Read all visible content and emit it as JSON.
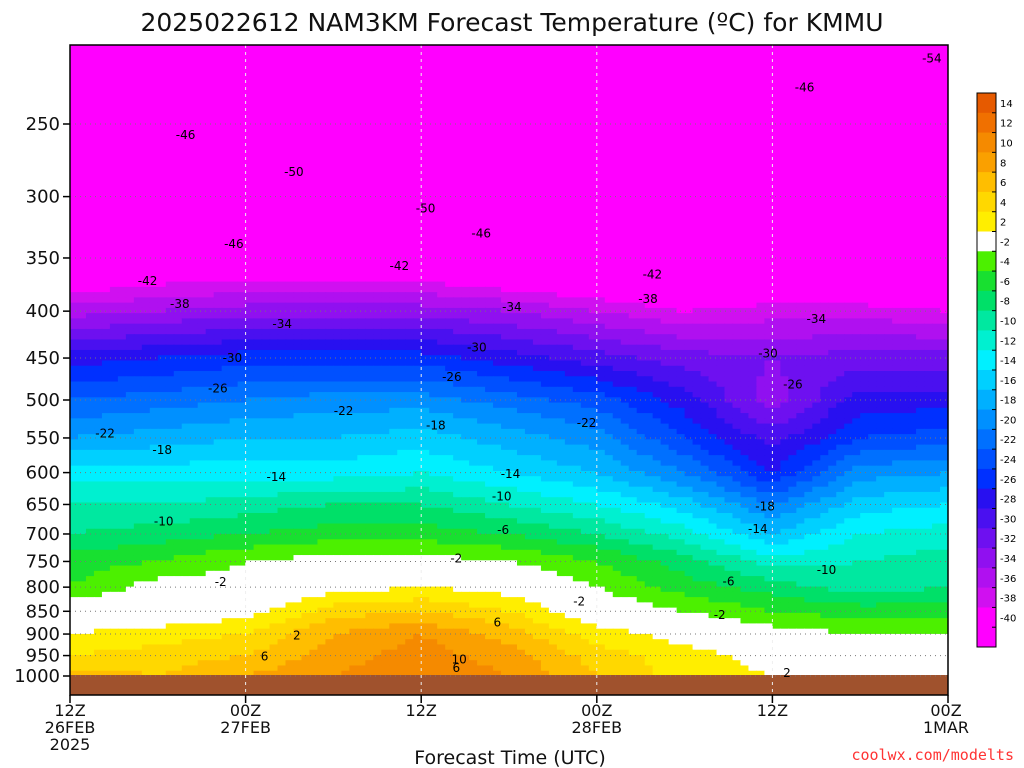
{
  "chart_data": {
    "type": "heatmap",
    "title": "2025022612 NAM3KM Forecast Temperature (ºC) for KMMU",
    "xlabel": "Forecast Time (UTC)",
    "ylabel": "",
    "credit": "coolwx.com/modelts",
    "y_scale": "log-pressure",
    "y_axis_inverted": true,
    "ylim": [
      1050,
      200
    ],
    "yticks": [
      250,
      300,
      350,
      400,
      450,
      500,
      550,
      600,
      650,
      700,
      750,
      800,
      850,
      900,
      950,
      1000
    ],
    "xticks": [
      {
        "hour": 0,
        "l1": "12Z",
        "l2": "26FEB",
        "l3": "2025"
      },
      {
        "hour": 12,
        "l1": "00Z",
        "l2": "27FEB",
        "l3": ""
      },
      {
        "hour": 24,
        "l1": "12Z",
        "l2": "",
        "l3": ""
      },
      {
        "hour": 36,
        "l1": "00Z",
        "l2": "28FEB",
        "l3": ""
      },
      {
        "hour": 48,
        "l1": "12Z",
        "l2": "",
        "l3": ""
      },
      {
        "hour": 60,
        "l1": "00Z",
        "l2": "1MAR",
        "l3": ""
      }
    ],
    "xlim": [
      0,
      60
    ],
    "grid": true,
    "legend": "right colorbar",
    "colorbar": {
      "labels": [
        "14",
        "12",
        "10",
        "8",
        "6",
        "4",
        "2",
        "-2",
        "-4",
        "-6",
        "-8",
        "-10",
        "-12",
        "-14",
        "-16",
        "-18",
        "-20",
        "-22",
        "-24",
        "-26",
        "-28",
        "-30",
        "-32",
        "-34",
        "-36",
        "-38",
        "-40"
      ],
      "colors": [
        "#e65a00",
        "#f07000",
        "#f58a00",
        "#faa000",
        "#ffbe00",
        "#ffd800",
        "#ffee00",
        "#ffffff",
        "#4cf000",
        "#18e030",
        "#00e068",
        "#00e8a0",
        "#00f0d0",
        "#00f0ff",
        "#00d0ff",
        "#00b0ff",
        "#0090ff",
        "#0070ff",
        "#0050ff",
        "#0030ff",
        "#2810f0",
        "#4a10f0",
        "#6e10f0",
        "#9010f0",
        "#b010f0",
        "#d010f0",
        "#ff00ff",
        "#ff00ff"
      ]
    },
    "ground_color": "#a0522d",
    "profile_hours": [
      0,
      6,
      12,
      18,
      24,
      30,
      36,
      42,
      48,
      54,
      60
    ],
    "profile_levels_hPa": [
      1000,
      950,
      900,
      850,
      800,
      750,
      700,
      650,
      600,
      550,
      500,
      450,
      400,
      350,
      300,
      250,
      200
    ],
    "temperature_C": [
      [
        7,
        6,
        8,
        10,
        12,
        10,
        6,
        3,
        2,
        1,
        2
      ],
      [
        4,
        5,
        6,
        9,
        11,
        9,
        5,
        3,
        1,
        0,
        0
      ],
      [
        2,
        3,
        4,
        8,
        10,
        7,
        3,
        1,
        -1,
        -2,
        -2
      ],
      [
        0,
        0,
        1,
        5,
        6,
        4,
        0,
        -2,
        -4,
        -5,
        -5
      ],
      [
        -4,
        -1,
        -1,
        1,
        2,
        1,
        -2,
        -5,
        -7,
        -9,
        -8
      ],
      [
        -5,
        -4,
        -2,
        -1,
        -1,
        -2,
        -4,
        -7,
        -11,
        -10,
        -9
      ],
      [
        -8,
        -7,
        -6,
        -5,
        -5,
        -6,
        -8,
        -11,
        -16,
        -12,
        -11
      ],
      [
        -10,
        -10,
        -9,
        -8,
        -8,
        -10,
        -12,
        -15,
        -20,
        -15,
        -14
      ],
      [
        -13,
        -13,
        -13,
        -13,
        -12,
        -14,
        -16,
        -20,
        -26,
        -19,
        -18
      ],
      [
        -18,
        -17,
        -16,
        -16,
        -15,
        -17,
        -19,
        -24,
        -29,
        -24,
        -23
      ],
      [
        -22,
        -21,
        -20,
        -19,
        -19,
        -21,
        -23,
        -27,
        -33,
        -27,
        -27
      ],
      [
        -27,
        -26,
        -25,
        -25,
        -25,
        -27,
        -29,
        -31,
        -32,
        -31,
        -31
      ],
      [
        -35,
        -34,
        -33,
        -33,
        -33,
        -34,
        -36,
        -38,
        -37,
        -37,
        -38
      ],
      [
        -44,
        -42,
        -42,
        -42,
        -42,
        -44,
        -45,
        -46,
        -44,
        -45,
        -46
      ],
      [
        -49,
        -49,
        -51,
        -51,
        -50,
        -51,
        -48,
        -45,
        -47,
        -49,
        -50
      ],
      [
        -48,
        -48,
        -47,
        -47,
        -48,
        -48,
        -47,
        -46,
        -47,
        -48,
        -48
      ],
      [
        -50,
        -48,
        -47,
        -46,
        -46,
        -47,
        -48,
        -50,
        -51,
        -53,
        -54
      ]
    ],
    "contour_labels": [
      {
        "value": "-54",
        "hour": 58.9,
        "p": 212
      },
      {
        "value": "-46",
        "hour": 50.2,
        "p": 228
      },
      {
        "value": "-46",
        "hour": 7.9,
        "p": 257
      },
      {
        "value": "-50",
        "hour": 15.3,
        "p": 282
      },
      {
        "value": "-50",
        "hour": 24.3,
        "p": 309
      },
      {
        "value": "-46",
        "hour": 28.1,
        "p": 329
      },
      {
        "value": "-46",
        "hour": 11.2,
        "p": 338
      },
      {
        "value": "-42",
        "hour": 22.5,
        "p": 357
      },
      {
        "value": "-42",
        "hour": 5.3,
        "p": 371
      },
      {
        "value": "-42",
        "hour": 39.8,
        "p": 365
      },
      {
        "value": "-38",
        "hour": 7.5,
        "p": 393
      },
      {
        "value": "-38",
        "hour": 39.5,
        "p": 388
      },
      {
        "value": "-34",
        "hour": 30.2,
        "p": 396
      },
      {
        "value": "-34",
        "hour": 14.5,
        "p": 413
      },
      {
        "value": "-34",
        "hour": 51.0,
        "p": 408
      },
      {
        "value": "-30",
        "hour": 27.8,
        "p": 438
      },
      {
        "value": "-30",
        "hour": 11.1,
        "p": 450
      },
      {
        "value": "-30",
        "hour": 47.7,
        "p": 445
      },
      {
        "value": "-26",
        "hour": 26.1,
        "p": 472
      },
      {
        "value": "-26",
        "hour": 10.1,
        "p": 486
      },
      {
        "value": "-26",
        "hour": 49.4,
        "p": 481
      },
      {
        "value": "-22",
        "hour": 18.7,
        "p": 514
      },
      {
        "value": "-22",
        "hour": 2.4,
        "p": 544
      },
      {
        "value": "-22",
        "hour": 35.3,
        "p": 530
      },
      {
        "value": "-18",
        "hour": 25.0,
        "p": 533
      },
      {
        "value": "-18",
        "hour": 6.3,
        "p": 567
      },
      {
        "value": "-18",
        "hour": 47.5,
        "p": 653
      },
      {
        "value": "-14",
        "hour": 14.1,
        "p": 607
      },
      {
        "value": "-14",
        "hour": 30.1,
        "p": 602
      },
      {
        "value": "-14",
        "hour": 47.0,
        "p": 691
      },
      {
        "value": "-10",
        "hour": 6.4,
        "p": 678
      },
      {
        "value": "-10",
        "hour": 29.5,
        "p": 637
      },
      {
        "value": "-10",
        "hour": 51.7,
        "p": 766
      },
      {
        "value": "-6",
        "hour": 29.6,
        "p": 693
      },
      {
        "value": "-6",
        "hour": 45.0,
        "p": 789
      },
      {
        "value": "-2",
        "hour": 26.4,
        "p": 744
      },
      {
        "value": "-2",
        "hour": 34.8,
        "p": 829
      },
      {
        "value": "-2",
        "hour": 44.4,
        "p": 858
      },
      {
        "value": "-2",
        "hour": 10.3,
        "p": 790
      },
      {
        "value": "2",
        "hour": 15.5,
        "p": 903
      },
      {
        "value": "2",
        "hour": 49.0,
        "p": 992
      },
      {
        "value": "6",
        "hour": 13.3,
        "p": 952
      },
      {
        "value": "6",
        "hour": 29.2,
        "p": 874
      },
      {
        "value": "6",
        "hour": 26.4,
        "p": 980
      },
      {
        "value": "10",
        "hour": 26.6,
        "p": 959
      }
    ]
  }
}
